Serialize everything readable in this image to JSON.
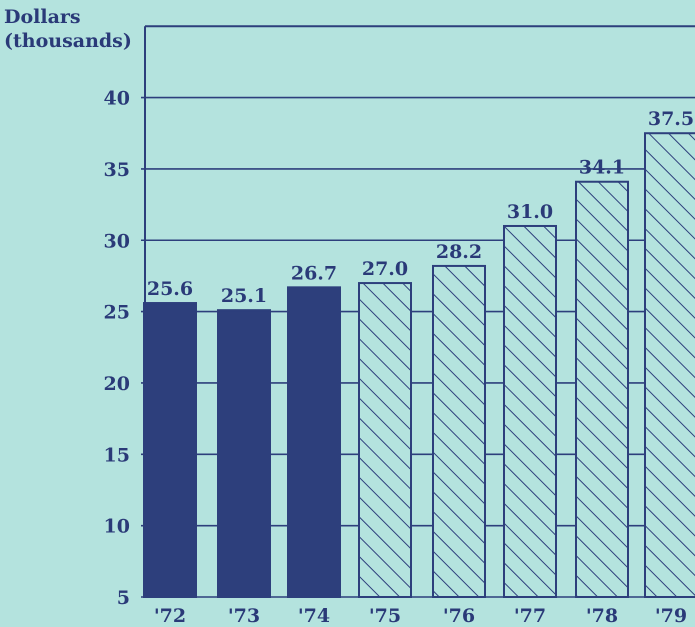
{
  "chart_data": {
    "type": "bar",
    "ylabel_lines": [
      "Dollars",
      "(thousands)"
    ],
    "categories": [
      "'72",
      "'73",
      "'74",
      "'75",
      "'76",
      "'77",
      "'78",
      "'79"
    ],
    "values": [
      25.6,
      25.1,
      26.7,
      27.0,
      28.2,
      31.0,
      34.1,
      37.5
    ],
    "value_labels": [
      "25.6",
      "25.1",
      "26.7",
      "27.0",
      "28.2",
      "31.0",
      "34.1",
      "37.5"
    ],
    "styles": [
      "solid",
      "solid",
      "solid",
      "hatched",
      "hatched",
      "hatched",
      "hatched",
      "hatched"
    ],
    "yticks": [
      5,
      10,
      15,
      20,
      25,
      30,
      35,
      40
    ],
    "ylim": [
      5,
      45
    ],
    "grid": true,
    "colors": {
      "bar": "#2d3f7c",
      "line": "#2d3f7c",
      "text": "#2a3a78",
      "background": "#b4e3de"
    }
  }
}
